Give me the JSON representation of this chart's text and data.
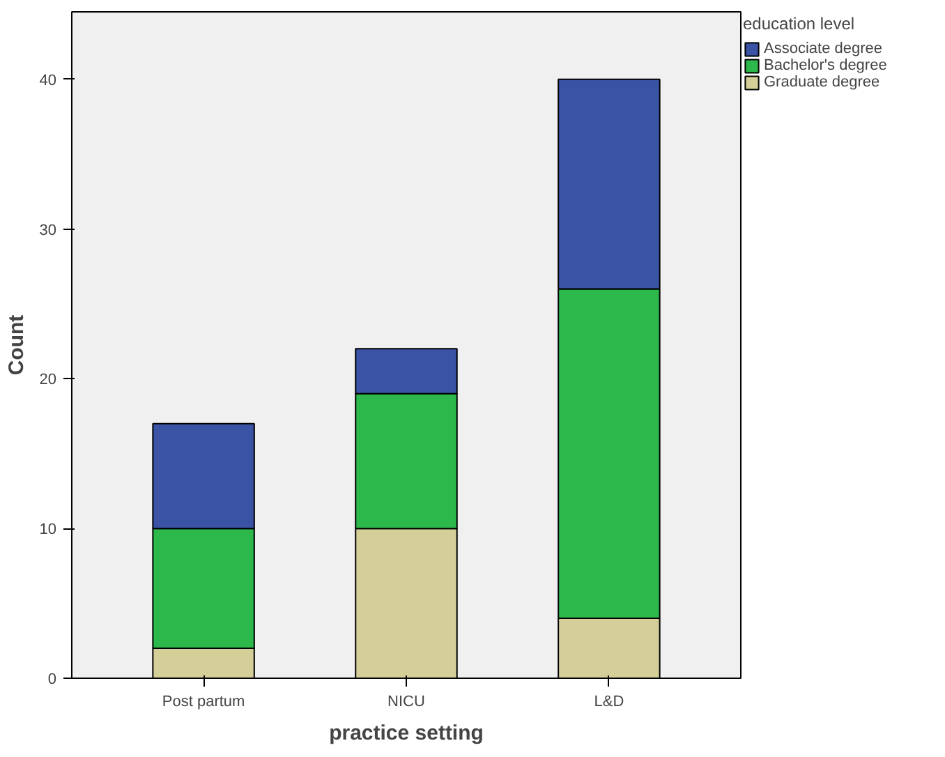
{
  "chart_data": {
    "type": "bar",
    "stacked": true,
    "xlabel": "practice setting",
    "ylabel": "Count",
    "legend_title": "education level",
    "legend": "top right",
    "categories": [
      "Post partum",
      "NICU",
      "L&D"
    ],
    "series": [
      {
        "name": "Graduate degree",
        "color": "#d4cf99",
        "values": [
          2,
          10,
          4
        ]
      },
      {
        "name": "Bachelor's degree",
        "color": "#2db84b",
        "values": [
          8,
          9,
          22
        ]
      },
      {
        "name": "Associate degree",
        "color": "#3a53a4",
        "values": [
          7,
          3,
          14
        ]
      }
    ],
    "ylim": [
      0,
      44.5
    ],
    "yticks": [
      0,
      10,
      20,
      30,
      40
    ],
    "grid": false
  }
}
